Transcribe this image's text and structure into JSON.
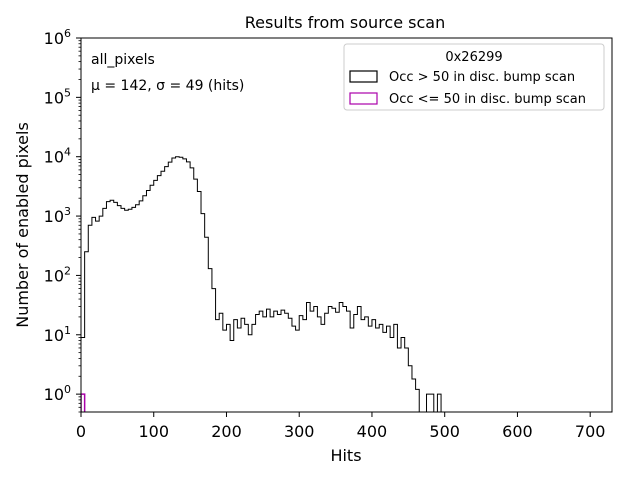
{
  "chart_data": {
    "type": "histogram",
    "title": "Results from source scan",
    "xlabel": "Hits",
    "ylabel": "Number of enabled pixels",
    "xlim": [
      0,
      730
    ],
    "ylim": [
      0.5,
      1000000
    ],
    "yscale": "log",
    "xticks": [
      0,
      100,
      200,
      300,
      400,
      500,
      600,
      700
    ],
    "xtick_labels": [
      "0",
      "100",
      "200",
      "300",
      "400",
      "500",
      "600",
      "700"
    ],
    "yticks": [
      1,
      10,
      100,
      1000,
      10000,
      100000,
      1000000
    ],
    "ytick_labels": [
      {
        "base": "10",
        "exp": "0"
      },
      {
        "base": "10",
        "exp": "1"
      },
      {
        "base": "10",
        "exp": "2"
      },
      {
        "base": "10",
        "exp": "3"
      },
      {
        "base": "10",
        "exp": "4"
      },
      {
        "base": "10",
        "exp": "5"
      },
      {
        "base": "10",
        "exp": "6"
      }
    ],
    "bin_width": 5,
    "annotation": {
      "line1": "all_pixels",
      "line2": "μ = 142, σ = 49 (hits)"
    },
    "legend": {
      "title": "0x26299",
      "position": "top-right",
      "entries": [
        {
          "label": "Occ > 50 in disc. bump scan",
          "color": "#000000"
        },
        {
          "label": "Occ <= 50 in disc. bump scan",
          "color": "#aa00aa"
        }
      ]
    },
    "series": [
      {
        "name": "Occ > 50 in disc. bump scan",
        "color": "#000000",
        "bins_start": 0,
        "values": [
          9,
          250,
          700,
          950,
          820,
          1000,
          1350,
          1750,
          1850,
          1700,
          1500,
          1350,
          1250,
          1300,
          1400,
          1550,
          1800,
          2200,
          2700,
          3300,
          4000,
          4800,
          5700,
          6800,
          8100,
          9500,
          10000,
          9800,
          9200,
          8200,
          6500,
          4200,
          2600,
          1100,
          440,
          130,
          60,
          18,
          23,
          12,
          15,
          8,
          18,
          13,
          19,
          15,
          10,
          15,
          22,
          25,
          20,
          27,
          20,
          25,
          22,
          26,
          23,
          19,
          14,
          12,
          21,
          18,
          35,
          25,
          30,
          20,
          15,
          23,
          30,
          28,
          24,
          35,
          30,
          25,
          13,
          22,
          30,
          18,
          20,
          14,
          18,
          13,
          15,
          11,
          14,
          9,
          15,
          6,
          9,
          6,
          3,
          1.8,
          1.2,
          0.5,
          0.5,
          1,
          1,
          0.5,
          1,
          0.5,
          0,
          0,
          0,
          0,
          0,
          0,
          0,
          0,
          0,
          0,
          0,
          0,
          0,
          0,
          0,
          0,
          0,
          0,
          0,
          0,
          0,
          0,
          0,
          0,
          0,
          0,
          0,
          0,
          0,
          0,
          0,
          0,
          0,
          0,
          0,
          0,
          0,
          0,
          0,
          0,
          0,
          0,
          0,
          0
        ]
      },
      {
        "name": "Occ <= 50 in disc. bump scan",
        "color": "#aa00aa",
        "bins_start": 0,
        "values": [
          1
        ]
      }
    ]
  }
}
